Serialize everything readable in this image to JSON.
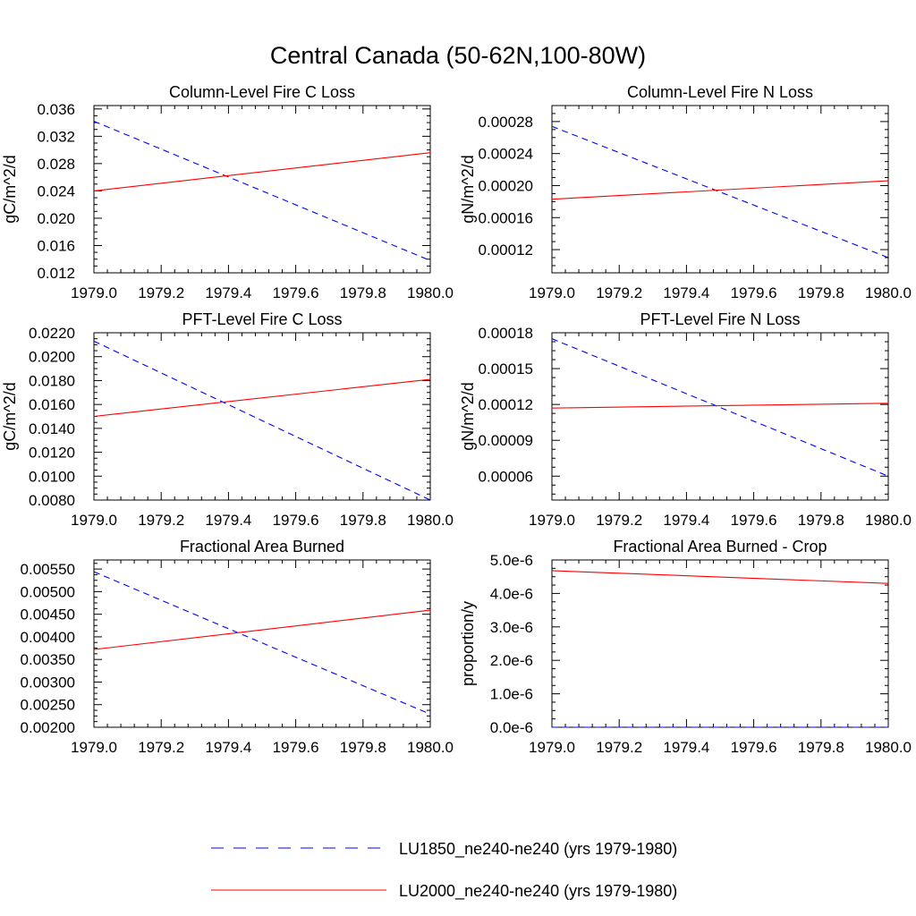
{
  "figure": {
    "title": "Central Canada (50-62N,100-80W)",
    "legend": [
      {
        "label": "LU1850_ne240-ne240 (yrs 1979-1980)",
        "color": "#0000ff",
        "dash": "dashed"
      },
      {
        "label": "LU2000_ne240-ne240 (yrs 1979-1980)",
        "color": "#ff0000",
        "dash": "solid"
      }
    ]
  },
  "chart_data": [
    {
      "type": "line",
      "title": "Column-Level Fire C Loss",
      "ylabel": "gC/m^2/d",
      "xlim": [
        1979.0,
        1980.0
      ],
      "ylim": [
        0.012,
        0.0365
      ],
      "xticks": [
        "1979.0",
        "1979.2",
        "1979.4",
        "1979.6",
        "1979.8",
        "1980.0"
      ],
      "yticks": [
        "0.012",
        "0.016",
        "0.020",
        "0.024",
        "0.028",
        "0.032",
        "0.036"
      ],
      "series": [
        {
          "name": "LU1850_ne240-ne240 (yrs 1979-1980)",
          "x": [
            1979.0,
            1980.0
          ],
          "values": [
            0.0342,
            0.0138
          ]
        },
        {
          "name": "LU2000_ne240-ne240 (yrs 1979-1980)",
          "x": [
            1979.0,
            1980.0
          ],
          "values": [
            0.024,
            0.0296
          ]
        }
      ]
    },
    {
      "type": "line",
      "title": "Column-Level Fire N Loss",
      "ylabel": "gN/m^2/d",
      "xlim": [
        1979.0,
        1980.0
      ],
      "ylim": [
        9.1e-05,
        0.0003
      ],
      "xticks": [
        "1979.0",
        "1979.2",
        "1979.4",
        "1979.6",
        "1979.8",
        "1980.0"
      ],
      "yticks": [
        "0.00012",
        "0.00016",
        "0.00020",
        "0.00024",
        "0.00028"
      ],
      "series": [
        {
          "name": "LU1850_ne240-ne240 (yrs 1979-1980)",
          "x": [
            1979.0,
            1980.0
          ],
          "values": [
            0.000274,
            0.00011
          ]
        },
        {
          "name": "LU2000_ne240-ne240 (yrs 1979-1980)",
          "x": [
            1979.0,
            1980.0
          ],
          "values": [
            0.000183,
            0.000206
          ]
        }
      ]
    },
    {
      "type": "line",
      "title": "PFT-Level Fire C Loss",
      "ylabel": "gC/m^2/d",
      "xlim": [
        1979.0,
        1980.0
      ],
      "ylim": [
        0.008,
        0.022
      ],
      "xticks": [
        "1979.0",
        "1979.2",
        "1979.4",
        "1979.6",
        "1979.8",
        "1980.0"
      ],
      "yticks": [
        "0.0080",
        "0.0100",
        "0.0120",
        "0.0140",
        "0.0160",
        "0.0180",
        "0.0200",
        "0.0220"
      ],
      "series": [
        {
          "name": "LU1850_ne240-ne240 (yrs 1979-1980)",
          "x": [
            1979.0,
            1980.0
          ],
          "values": [
            0.0213,
            0.008
          ]
        },
        {
          "name": "LU2000_ne240-ne240 (yrs 1979-1980)",
          "x": [
            1979.0,
            1980.0
          ],
          "values": [
            0.015,
            0.0181
          ]
        }
      ]
    },
    {
      "type": "line",
      "title": "PFT-Level Fire N Loss",
      "ylabel": "gN/m^2/d",
      "xlim": [
        1979.0,
        1980.0
      ],
      "ylim": [
        4e-05,
        0.00018
      ],
      "xticks": [
        "1979.0",
        "1979.2",
        "1979.4",
        "1979.6",
        "1979.8",
        "1980.0"
      ],
      "yticks": [
        "0.00006",
        "0.00009",
        "0.00012",
        "0.00015",
        "0.00018"
      ],
      "series": [
        {
          "name": "LU1850_ne240-ne240 (yrs 1979-1980)",
          "x": [
            1979.0,
            1980.0
          ],
          "values": [
            0.000175,
            6e-05
          ]
        },
        {
          "name": "LU2000_ne240-ne240 (yrs 1979-1980)",
          "x": [
            1979.0,
            1980.0
          ],
          "values": [
            0.000117,
            0.000121
          ]
        }
      ]
    },
    {
      "type": "line",
      "title": "Fractional Area Burned",
      "ylabel": "",
      "xlim": [
        1979.0,
        1980.0
      ],
      "ylim": [
        0.002,
        0.0057
      ],
      "xticks": [
        "1979.0",
        "1979.2",
        "1979.4",
        "1979.6",
        "1979.8",
        "1980.0"
      ],
      "yticks": [
        "0.00200",
        "0.00250",
        "0.00300",
        "0.00350",
        "0.00400",
        "0.00450",
        "0.00500",
        "0.00550"
      ],
      "series": [
        {
          "name": "LU1850_ne240-ne240 (yrs 1979-1980)",
          "x": [
            1979.0,
            1980.0
          ],
          "values": [
            0.00544,
            0.00229
          ]
        },
        {
          "name": "LU2000_ne240-ne240 (yrs 1979-1980)",
          "x": [
            1979.0,
            1980.0
          ],
          "values": [
            0.00372,
            0.00459
          ]
        }
      ]
    },
    {
      "type": "line",
      "title": "Fractional Area Burned - Crop",
      "ylabel": "proportion/y",
      "xlim": [
        1979.0,
        1980.0
      ],
      "ylim": [
        0.0,
        5e-06
      ],
      "xticks": [
        "1979.0",
        "1979.2",
        "1979.4",
        "1979.6",
        "1979.8",
        "1980.0"
      ],
      "yticks": [
        "0.0e-6",
        "1.0e-6",
        "2.0e-6",
        "3.0e-6",
        "4.0e-6",
        "5.0e-6"
      ],
      "series": [
        {
          "name": "LU2000_ne240-ne240 (yrs 1979-1980)",
          "x": [
            1979.0,
            1980.0
          ],
          "values": [
            4.68e-06,
            4.3e-06
          ]
        },
        {
          "name": "LU1850_ne240-ne240 (yrs 1979-1980)",
          "x": [
            1979.0,
            1980.0
          ],
          "values": [
            0.0,
            0.0
          ]
        }
      ]
    }
  ]
}
